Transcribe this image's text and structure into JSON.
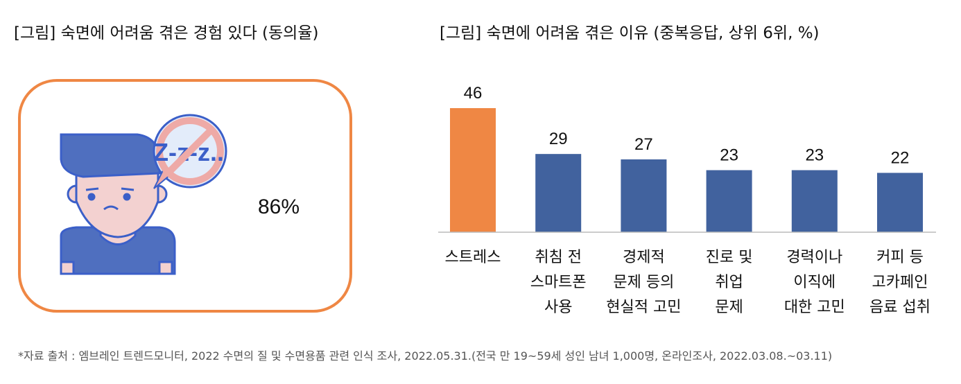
{
  "left_panel": {
    "title": "[그림] 숙면에 어려움 겪은 경험 있다 (동의율)",
    "value": "86%",
    "icon_text": "Z-z-z..",
    "border_color": "#ef8744"
  },
  "chart_data": {
    "type": "bar",
    "title": "[그림] 숙면에 어려움 겪은 이유 (중복응답, 상위 6위, %)",
    "categories": [
      [
        "스트레스"
      ],
      [
        "취침 전",
        "스마트폰",
        "사용"
      ],
      [
        "경제적",
        "문제 등의",
        "현실적 고민"
      ],
      [
        "진로 및",
        "취업",
        "문제"
      ],
      [
        "경력이나",
        "이직에",
        "대한 고민"
      ],
      [
        "커피 등",
        "고카페인",
        "음료 섭취"
      ]
    ],
    "values": [
      46,
      29,
      27,
      23,
      23,
      22
    ],
    "colors": [
      "#ef8744",
      "#41629e",
      "#41629e",
      "#41629e",
      "#41629e",
      "#41629e"
    ],
    "ylim": [
      0,
      50
    ],
    "xlabel": "",
    "ylabel": "",
    "grid": false
  },
  "footnote": "*자료 출처 : 엠브레인 트렌드모니터, 2022 수면의 질 및 수면용품 관련 인식 조사, 2022.05.31.(전국 만 19~59세 성인 남녀 1,000명, 온라인조사, 2022.03.08.~03.11)"
}
